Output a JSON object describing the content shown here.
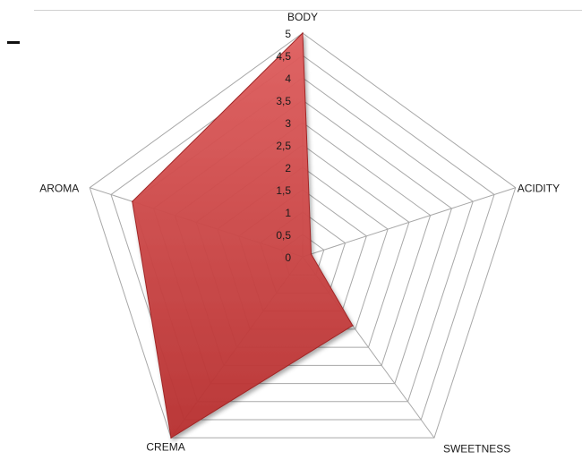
{
  "chart_data": {
    "type": "radar",
    "title": "",
    "axes": [
      "BODY",
      "ACIDITY",
      "SWEETNESS",
      "CREMA",
      "AROMA"
    ],
    "rlim": [
      0,
      5
    ],
    "ticks": [
      "0",
      "0,5",
      "1",
      "1,5",
      "2",
      "2,5",
      "3",
      "3,5",
      "4",
      "4,5",
      "5"
    ],
    "grid": true,
    "legend": "none",
    "series": [
      {
        "values": [
          5,
          0.2,
          1.9,
          5,
          4
        ],
        "color": "#d64545"
      }
    ]
  }
}
